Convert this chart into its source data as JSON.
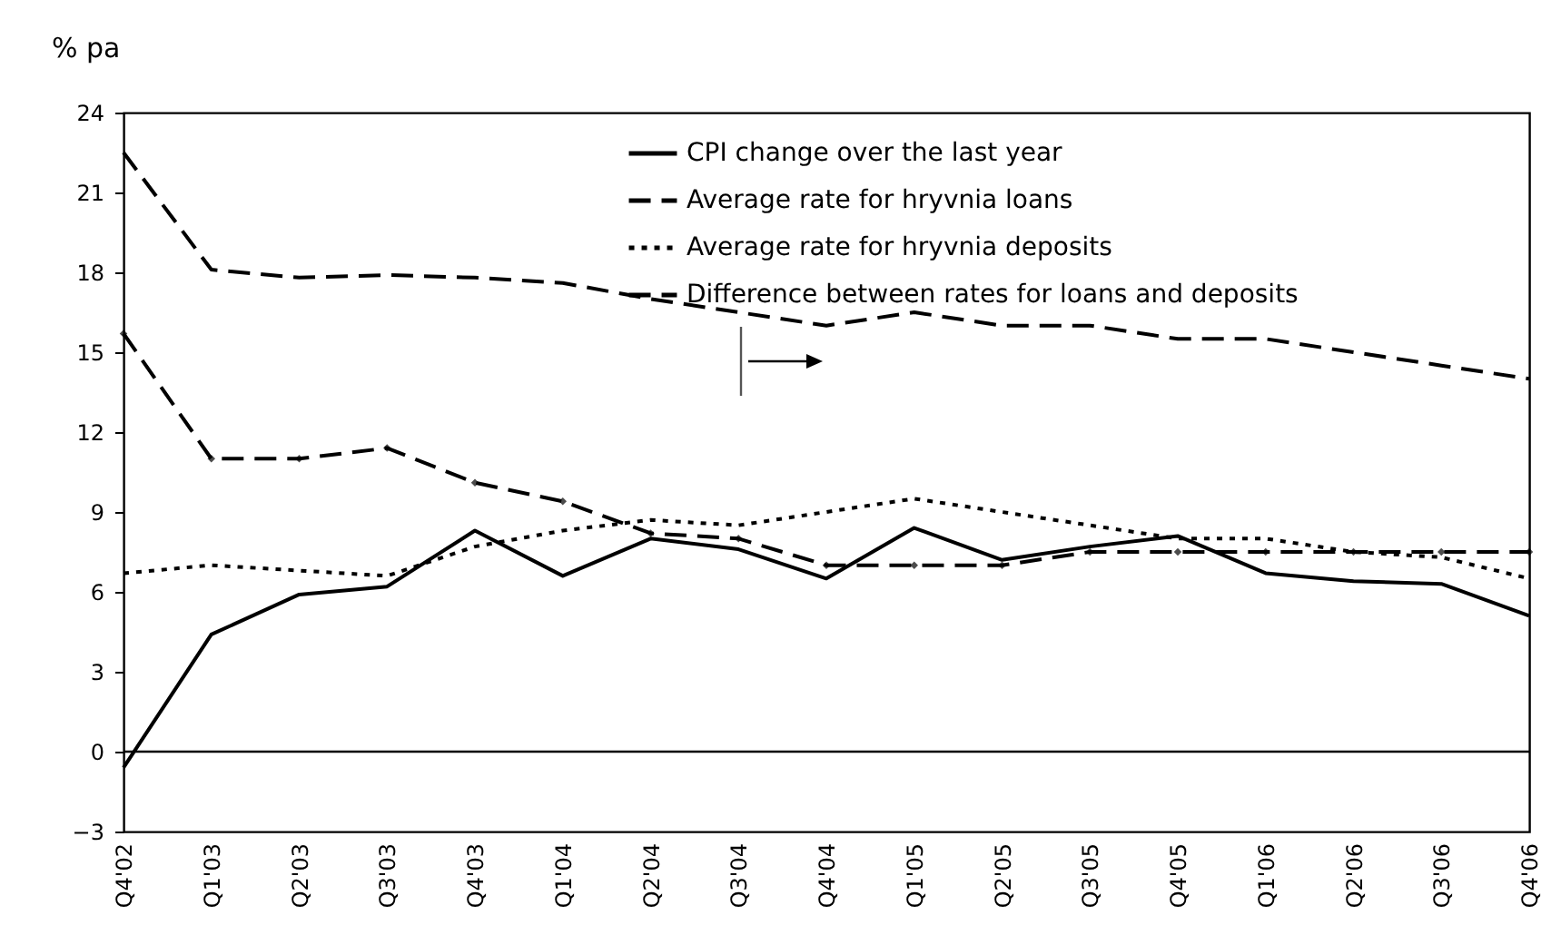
{
  "chart_data": {
    "type": "line",
    "ylabel": "% pa",
    "categories": [
      "Q4'02",
      "Q1'03",
      "Q2'03",
      "Q3'03",
      "Q4'03",
      "Q1'04",
      "Q2'04",
      "Q3'04",
      "Q4'04",
      "Q1'05",
      "Q2'05",
      "Q3'05",
      "Q4'05",
      "Q1'06",
      "Q2'06",
      "Q3'06",
      "Q4'06"
    ],
    "series": [
      {
        "name": "CPI change over the last year",
        "color": "#000000",
        "line_style": "solid",
        "values": [
          -0.6,
          4.4,
          5.9,
          6.2,
          8.3,
          6.6,
          8.0,
          7.6,
          6.5,
          8.4,
          7.2,
          7.7,
          8.1,
          6.7,
          6.4,
          6.3,
          5.1
        ]
      },
      {
        "name": "Average rate for hryvnia loans",
        "color": "#000000",
        "line_style": "dashed",
        "values": [
          22.5,
          18.1,
          17.8,
          17.9,
          17.8,
          17.6,
          17.0,
          16.5,
          16.0,
          16.5,
          16.0,
          16.0,
          15.5,
          15.5,
          15.0,
          14.5,
          14.0
        ]
      },
      {
        "name": "Average rate for hryvnia deposits",
        "color": "#000000",
        "line_style": "dotted",
        "values": [
          6.7,
          7.0,
          6.8,
          6.6,
          7.7,
          8.3,
          8.7,
          8.5,
          9.0,
          9.5,
          9.0,
          8.5,
          8.0,
          8.0,
          7.5,
          7.3,
          6.5
        ]
      },
      {
        "name": "Difference between rates for loans and deposits",
        "color": "#000000",
        "line_style": "dashed",
        "marker": "diamond",
        "values": [
          15.7,
          11.0,
          11.0,
          11.4,
          10.1,
          9.4,
          8.2,
          8.0,
          7.0,
          7.0,
          7.0,
          7.5,
          7.5,
          7.5,
          7.5,
          7.5,
          7.5
        ]
      }
    ],
    "ylim": [
      -3,
      24
    ],
    "yticks": [
      -3,
      0,
      3,
      6,
      9,
      12,
      15,
      18,
      21,
      24
    ],
    "ref_lines": [
      {
        "axis": "y",
        "value": 0,
        "color": "#000000"
      }
    ],
    "grid": false,
    "legend": "top right"
  }
}
